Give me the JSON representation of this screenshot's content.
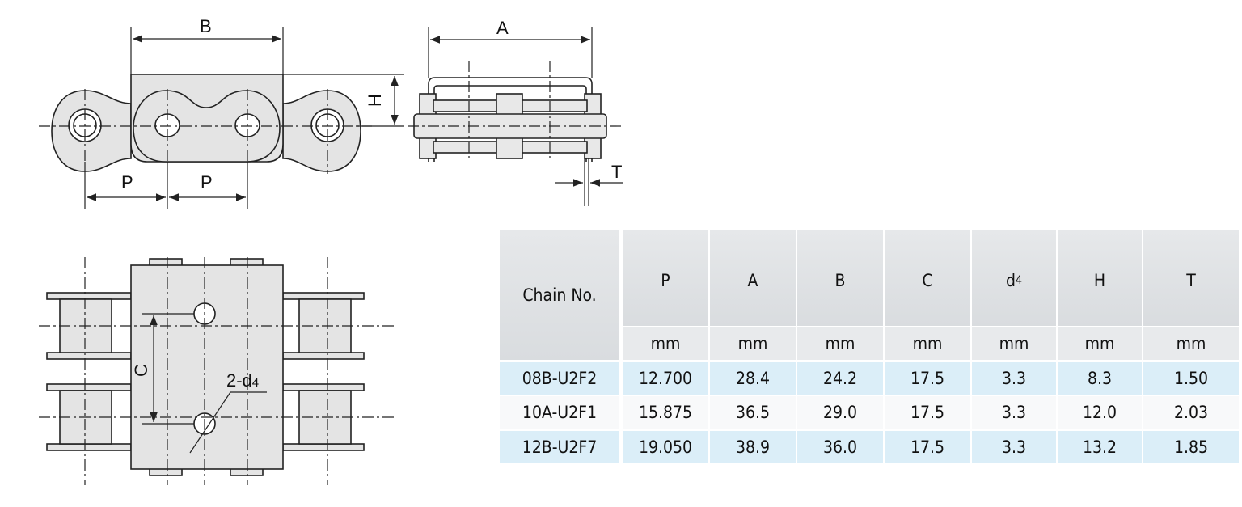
{
  "diagram": {
    "side_view_labels": {
      "B": "B",
      "H": "H",
      "P1": "P",
      "P2": "P"
    },
    "front_view_labels": {
      "A": "A",
      "T": "T"
    },
    "top_view_labels": {
      "C": "C",
      "holes": "2-d",
      "holes_sub": "4"
    },
    "fill_color": "#e4e4e4",
    "line_color": "#222222"
  },
  "table": {
    "header_chain": "Chain No.",
    "columns": [
      {
        "name": "P",
        "unit": "mm"
      },
      {
        "name": "A",
        "unit": "mm"
      },
      {
        "name": "B",
        "unit": "mm"
      },
      {
        "name": "C",
        "unit": "mm"
      },
      {
        "name": "d",
        "sub": "4",
        "unit": "mm"
      },
      {
        "name": "H",
        "unit": "mm"
      },
      {
        "name": "T",
        "unit": "mm"
      }
    ],
    "rows": [
      {
        "chain": "08B-U2F2",
        "values": [
          "12.700",
          "28.4",
          "24.2",
          "17.5",
          "3.3",
          "8.3",
          "1.50"
        ]
      },
      {
        "chain": "10A-U2F1",
        "values": [
          "15.875",
          "36.5",
          "29.0",
          "17.5",
          "3.3",
          "12.0",
          "2.03"
        ]
      },
      {
        "chain": "12B-U2F7",
        "values": [
          "19.050",
          "38.9",
          "36.0",
          "17.5",
          "3.3",
          "13.2",
          "1.85"
        ]
      }
    ],
    "row_colors": [
      "#dbeef8",
      "#f8f9fa",
      "#dbeef8"
    ]
  }
}
